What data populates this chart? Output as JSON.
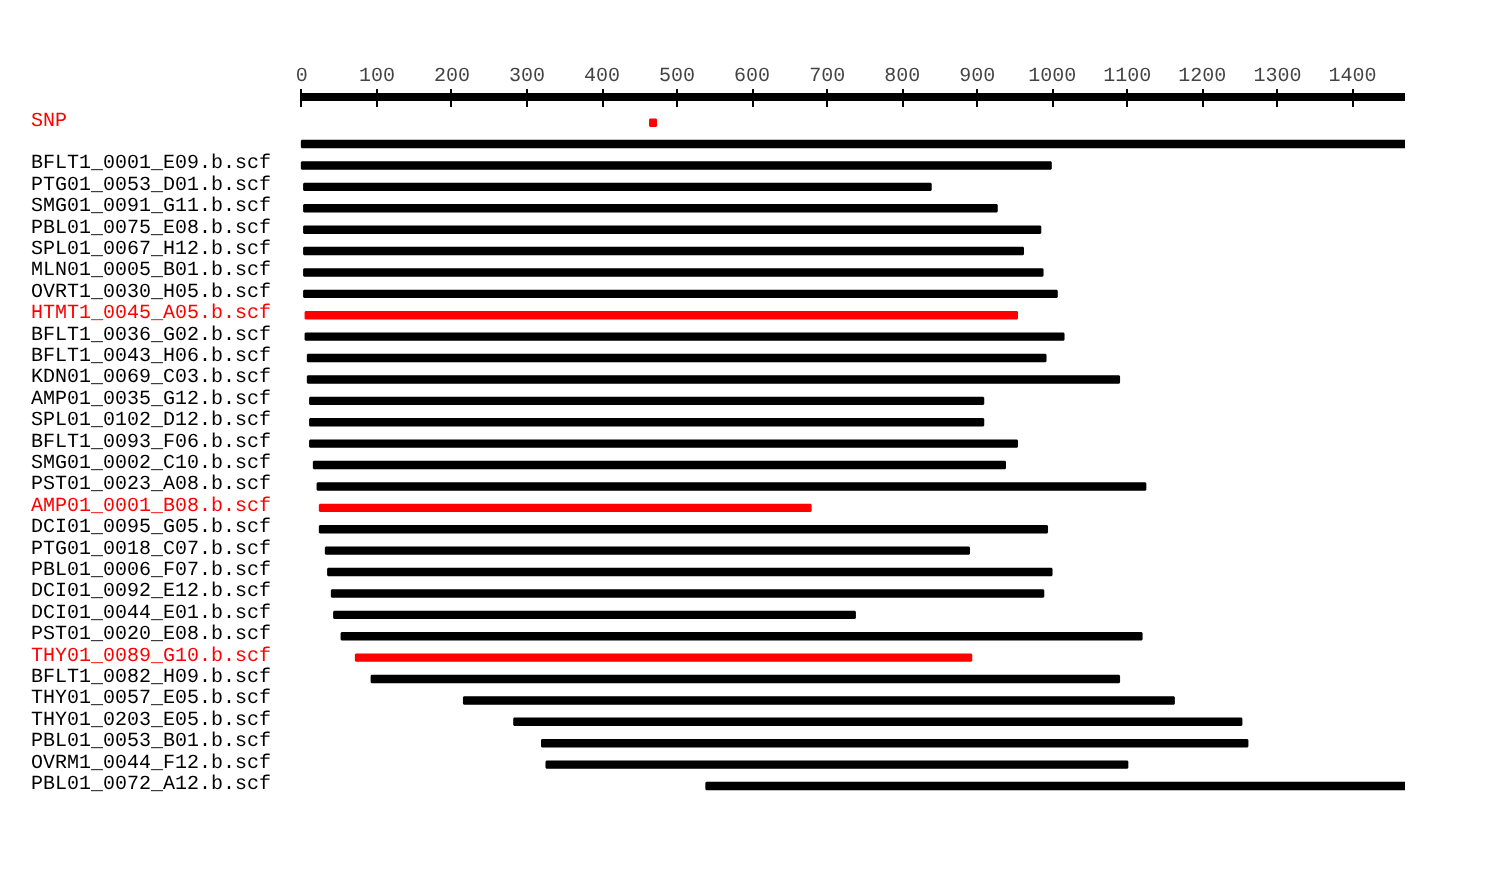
{
  "chart_data": {
    "type": "bar",
    "orientation": "horizontal",
    "categories": [
      "SNP",
      null,
      "BFLT1_0001_E09.b.scf",
      "PTG01_0053_D01.b.scf",
      "SMG01_0091_G11.b.scf",
      "PBL01_0075_E08.b.scf",
      "SPL01_0067_H12.b.scf",
      "MLN01_0005_B01.b.scf",
      "OVRT1_0030_H05.b.scf",
      "HTMT1_0045_A05.b.scf",
      "BFLT1_0036_G02.b.scf",
      "BFLT1_0043_H06.b.scf",
      "KDN01_0069_C03.b.scf",
      "AMP01_0035_G12.b.scf",
      "SPL01_0102_D12.b.scf",
      "BFLT1_0093_F06.b.scf",
      "SMG01_0002_C10.b.scf",
      "PST01_0023_A08.b.scf",
      "AMP01_0001_B08.b.scf",
      "DCI01_0095_G05.b.scf",
      "PTG01_0018_C07.b.scf",
      "PBL01_0006_F07.b.scf",
      "DCI01_0092_E12.b.scf",
      "DCI01_0044_E01.b.scf",
      "PST01_0020_E08.b.scf",
      "THY01_0089_G10.b.scf",
      "BFLT1_0082_H09.b.scf",
      "THY01_0057_E05.b.scf",
      "THY01_0203_E05.b.scf",
      "PBL01_0053_B01.b.scf",
      "OVRM1_0044_F12.b.scf",
      "PBL01_0072_A12.b.scf"
    ],
    "base": [
      464,
      0,
      0,
      3,
      3,
      3,
      3,
      3,
      3,
      5,
      5,
      8,
      8,
      11,
      11,
      11,
      16,
      21,
      24,
      24,
      32,
      35,
      40,
      43,
      53,
      72,
      93,
      216,
      283,
      320,
      326,
      539
    ],
    "values": [
      8,
      1470,
      998,
      835,
      923,
      981,
      958,
      984,
      1003,
      948,
      1010,
      983,
      1081,
      897,
      897,
      942,
      921,
      1103,
      654,
      969,
      857,
      964,
      948,
      694,
      1066,
      820,
      996,
      946,
      969,
      940,
      774,
      931
    ],
    "colors": [
      "#ff0000",
      "#000000",
      "#000000",
      "#000000",
      "#000000",
      "#000000",
      "#000000",
      "#000000",
      "#000000",
      "#ff0000",
      "#000000",
      "#000000",
      "#000000",
      "#000000",
      "#000000",
      "#000000",
      "#000000",
      "#000000",
      "#ff0000",
      "#000000",
      "#000000",
      "#000000",
      "#000000",
      "#000000",
      "#000000",
      "#ff0000",
      "#000000",
      "#000000",
      "#000000",
      "#000000",
      "#000000",
      "#000000"
    ],
    "xlim": [
      0,
      1470
    ],
    "xticks": [
      0,
      100,
      200,
      300,
      400,
      500,
      600,
      700,
      800,
      900,
      1000,
      1100,
      1200,
      1300,
      1400
    ],
    "tick_labels": "x",
    "grid": false
  }
}
